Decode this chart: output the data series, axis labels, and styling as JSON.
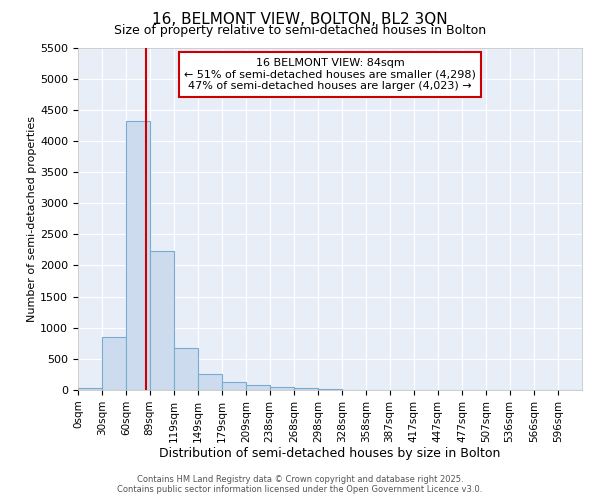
{
  "title": "16, BELMONT VIEW, BOLTON, BL2 3QN",
  "subtitle": "Size of property relative to semi-detached houses in Bolton",
  "xlabel": "Distribution of semi-detached houses by size in Bolton",
  "ylabel": "Number of semi-detached properties",
  "bin_labels": [
    "0sqm",
    "30sqm",
    "60sqm",
    "89sqm",
    "119sqm",
    "149sqm",
    "179sqm",
    "209sqm",
    "238sqm",
    "268sqm",
    "298sqm",
    "328sqm",
    "358sqm",
    "387sqm",
    "417sqm",
    "447sqm",
    "477sqm",
    "507sqm",
    "536sqm",
    "566sqm",
    "596sqm"
  ],
  "bar_heights": [
    30,
    850,
    4320,
    2240,
    670,
    255,
    130,
    80,
    50,
    30,
    20,
    0,
    0,
    0,
    0,
    0,
    0,
    0,
    0,
    0,
    0
  ],
  "bar_color": "#ccdcee",
  "bar_edgecolor": "#7aaace",
  "bar_linewidth": 0.8,
  "vline_x": 84,
  "vline_color": "#cc0000",
  "annotation_title": "16 BELMONT VIEW: 84sqm",
  "annotation_line1": "← 51% of semi-detached houses are smaller (4,298)",
  "annotation_line2": "47% of semi-detached houses are larger (4,023) →",
  "annotation_box_color": "white",
  "annotation_box_edgecolor": "#cc0000",
  "ylim": [
    0,
    5500
  ],
  "yticks": [
    0,
    500,
    1000,
    1500,
    2000,
    2500,
    3000,
    3500,
    4000,
    4500,
    5000,
    5500
  ],
  "bin_starts": [
    0,
    30,
    60,
    89,
    119,
    149,
    179,
    209,
    238,
    268,
    298,
    328,
    358,
    387,
    417,
    447,
    477,
    507,
    536,
    566,
    596
  ],
  "background_color": "#ffffff",
  "plot_bg_color": "#e8eef8",
  "grid_color": "#ffffff",
  "footer_line1": "Contains HM Land Registry data © Crown copyright and database right 2025.",
  "footer_line2": "Contains public sector information licensed under the Open Government Licence v3.0."
}
